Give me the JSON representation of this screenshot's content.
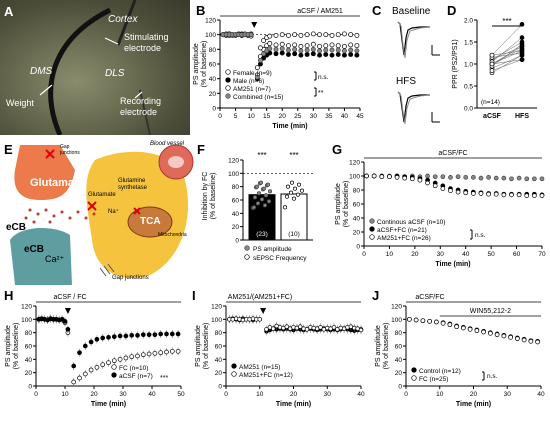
{
  "panelA": {
    "label": "A",
    "cortex": "Cortex",
    "stim": "Stimulating\nelectrode",
    "dms": "DMS",
    "dls": "DLS",
    "weight": "Weight",
    "rec": "Recording\nelectrode"
  },
  "panelB": {
    "label": "B",
    "banner": "aCSF / AM251",
    "ylabel": "PS amplitude\n(% of baseline)",
    "xlabel": "Time (min)",
    "legend": [
      "Female (n=9)",
      "Male (n=6)",
      "AM251 (n=7)",
      "Combined (n=15)"
    ],
    "ns": "n.s.",
    "sig": "**"
  },
  "panelC": {
    "label": "C",
    "baseline": "Baseline",
    "hfs": "HFS"
  },
  "panelD": {
    "label": "D",
    "ylabel": "PPR (PS2/PS1)",
    "n": "(n=14)",
    "sig": "***",
    "cats": [
      "aCSF",
      "HFS"
    ]
  },
  "panelE": {
    "label": "E",
    "glutamate": "Glutamate",
    "ecb1": "eCB",
    "ecb2": "eCB",
    "ca": "Ca²⁺",
    "bloodvessel": "Blood vessel",
    "gluamine": "Glutamine\nsynthetase",
    "glutamate2": "Glutamate",
    "tca": "TCA",
    "mito": "Mitochondria",
    "gapjx": "Gap junctions",
    "gapjx2": "Gap\njunctions",
    "na": "Na⁺"
  },
  "panelF": {
    "label": "F",
    "ylabel": "Inhibition by FC\n(% of baseline)",
    "sig1": "***",
    "sig2": "***",
    "n1": "(23)",
    "n2": "(10)",
    "legend": [
      "PS amplitude",
      "sEPSC Frequency"
    ]
  },
  "panelG": {
    "label": "G",
    "banner": "aCSF/FC",
    "ylabel": "PS amplitude\n(% of baseline)",
    "xlabel": "Time (min)",
    "legend": [
      "Continous aCSF (n=10)",
      "aCSF+FC (n=21)",
      "AM251+FC (n=26)"
    ],
    "ns": "n.s."
  },
  "panelH": {
    "label": "H",
    "banner": "aCSF / FC",
    "ylabel": "PS amplitude\n(% of baseline)",
    "xlabel": "Time (min)",
    "legend": [
      "FC (n=10)",
      "aCSF (n=7)"
    ],
    "sig": "***"
  },
  "panelI": {
    "label": "I",
    "banner": "AM251/(AM251+FC)",
    "ylabel": "PS amplitude\n(% of baseline)",
    "xlabel": "Time (min)",
    "legend": [
      "AM251 (n=15)",
      "AM251+FC (n=12)"
    ]
  },
  "panelJ": {
    "label": "J",
    "banner": "aCSF/FC",
    "banner2": "WIN55,212-2",
    "ylabel": "PS amplitude\n(% of baseline)",
    "xlabel": "Time (min)",
    "legend": [
      "Control (n=12)",
      "FC (n=25)"
    ],
    "ns": "n.s."
  },
  "chart_data": [
    {
      "id": "B",
      "type": "scatter",
      "xlim": [
        0,
        45
      ],
      "ylim": [
        0,
        120
      ],
      "xticks": [
        0,
        5,
        10,
        15,
        20,
        25,
        30,
        35,
        40,
        45
      ],
      "yticks": [
        0,
        20,
        40,
        60,
        80,
        100,
        120
      ],
      "series": [
        {
          "name": "Female (n=9)",
          "style": "open",
          "x": [
            1,
            2,
            3,
            4,
            5,
            6,
            7,
            8,
            9,
            10,
            12,
            13,
            14,
            15,
            16,
            18,
            20,
            22,
            24,
            26,
            28,
            30,
            32,
            34,
            36,
            38,
            40,
            42,
            44
          ],
          "y": [
            100,
            101,
            99,
            100,
            100,
            101,
            99,
            100,
            100,
            98,
            45,
            70,
            80,
            85,
            88,
            86,
            87,
            85,
            86,
            84,
            85,
            87,
            84,
            85,
            86,
            85,
            84,
            86,
            85
          ]
        },
        {
          "name": "Male (n=6)",
          "style": "filled",
          "x": [
            1,
            2,
            3,
            4,
            5,
            6,
            7,
            8,
            9,
            10,
            12,
            13,
            14,
            15,
            16,
            18,
            20,
            22,
            24,
            26,
            28,
            30,
            32,
            34,
            36,
            38,
            40,
            42,
            44
          ],
          "y": [
            100,
            99,
            101,
            100,
            99,
            100,
            101,
            100,
            99,
            101,
            40,
            60,
            68,
            72,
            75,
            74,
            75,
            73,
            74,
            72,
            73,
            74,
            72,
            73,
            72,
            73,
            72,
            73,
            72
          ]
        },
        {
          "name": "AM251 (n=7)",
          "style": "open",
          "x": [
            1,
            2,
            3,
            4,
            5,
            6,
            7,
            8,
            9,
            10,
            12,
            13,
            14,
            15,
            16,
            18,
            20,
            22,
            24,
            26,
            28,
            30,
            32,
            34,
            36,
            38,
            40,
            42,
            44
          ],
          "y": [
            100,
            100,
            101,
            99,
            100,
            100,
            99,
            101,
            100,
            100,
            55,
            82,
            92,
            96,
            98,
            99,
            100,
            99,
            100,
            99,
            100,
            101,
            100,
            100,
            99,
            100,
            101,
            100,
            99
          ]
        },
        {
          "name": "Combined (n=15)",
          "style": "gray",
          "x": [
            1,
            2,
            3,
            4,
            5,
            6,
            7,
            8,
            9,
            10,
            12,
            13,
            14,
            15,
            16,
            18,
            20,
            22,
            24,
            26,
            28,
            30,
            32,
            34,
            36,
            38,
            40,
            42,
            44
          ],
          "y": [
            100,
            100,
            100,
            100,
            100,
            100,
            100,
            100,
            100,
            100,
            42,
            65,
            74,
            78,
            81,
            80,
            81,
            79,
            80,
            78,
            79,
            80,
            78,
            79,
            79,
            79,
            78,
            79,
            78
          ]
        }
      ]
    },
    {
      "id": "D",
      "type": "scatter",
      "categories": [
        "aCSF",
        "HFS"
      ],
      "ylim": [
        0.0,
        2.0
      ],
      "yticks": [
        0.0,
        0.5,
        1.0,
        1.5,
        2.0
      ],
      "pairs": [
        [
          1.0,
          1.3
        ],
        [
          1.1,
          1.4
        ],
        [
          0.9,
          1.2
        ],
        [
          1.2,
          1.9
        ],
        [
          1.0,
          1.1
        ],
        [
          1.1,
          1.5
        ],
        [
          0.8,
          1.2
        ],
        [
          1.0,
          1.35
        ],
        [
          1.15,
          1.25
        ],
        [
          0.95,
          1.45
        ],
        [
          1.05,
          1.6
        ],
        [
          1.2,
          1.3
        ],
        [
          0.85,
          1.1
        ],
        [
          1.0,
          1.4
        ]
      ]
    },
    {
      "id": "F",
      "type": "bar",
      "categories": [
        "PS amplitude",
        "sEPSC Frequency"
      ],
      "values": [
        68,
        69
      ],
      "ylim": [
        0,
        120
      ],
      "yticks": [
        0,
        20,
        40,
        60,
        80,
        100,
        120
      ]
    },
    {
      "id": "G",
      "type": "scatter",
      "xlim": [
        0,
        70
      ],
      "ylim": [
        0,
        120
      ],
      "xticks": [
        0,
        10,
        20,
        30,
        40,
        50,
        60,
        70
      ],
      "yticks": [
        0,
        20,
        40,
        60,
        80,
        100,
        120
      ],
      "series": [
        {
          "name": "Continous aCSF (n=10)",
          "style": "gray",
          "x": [
            1,
            4,
            7,
            10,
            13,
            16,
            19,
            22,
            25,
            28,
            31,
            34,
            37,
            40,
            43,
            46,
            49,
            52,
            55,
            58,
            61,
            64,
            67,
            70
          ],
          "y": [
            100,
            100,
            99,
            100,
            100,
            99,
            100,
            99,
            100,
            99,
            99,
            98,
            99,
            98,
            98,
            97,
            98,
            97,
            97,
            96,
            97,
            96,
            96,
            96
          ]
        },
        {
          "name": "aCSF+FC (n=21)",
          "style": "filled",
          "x": [
            1,
            4,
            7,
            10,
            13,
            16,
            19,
            22,
            25,
            28,
            31,
            34,
            37,
            40,
            43,
            46,
            49,
            52,
            55,
            58,
            61,
            64,
            67,
            70
          ],
          "y": [
            100,
            100,
            100,
            99,
            100,
            99,
            98,
            96,
            94,
            90,
            86,
            82,
            80,
            78,
            77,
            76,
            75,
            75,
            74,
            74,
            74,
            74,
            74,
            73
          ]
        },
        {
          "name": "AM251+FC (n=26)",
          "style": "open",
          "x": [
            1,
            4,
            7,
            10,
            13,
            16,
            19,
            22,
            25,
            28,
            31,
            34,
            37,
            40,
            43,
            46,
            49,
            52,
            55,
            58,
            61,
            64,
            67,
            70
          ],
          "y": [
            100,
            100,
            99,
            99,
            98,
            97,
            96,
            94,
            90,
            86,
            82,
            79,
            77,
            76,
            75,
            75,
            74,
            74,
            73,
            73,
            73,
            72,
            72,
            72
          ]
        }
      ]
    },
    {
      "id": "H",
      "type": "scatter",
      "xlim": [
        0,
        50
      ],
      "ylim": [
        0,
        120
      ],
      "xticks": [
        0,
        10,
        20,
        30,
        40,
        50
      ],
      "yticks": [
        0,
        20,
        40,
        60,
        80,
        100,
        120
      ],
      "series": [
        {
          "name": "FC (n=10)",
          "style": "open",
          "x": [
            1,
            2,
            3,
            4,
            5,
            6,
            7,
            8,
            9,
            10,
            11,
            13,
            15,
            17,
            19,
            21,
            23,
            25,
            27,
            29,
            31,
            33,
            35,
            37,
            39,
            41,
            43,
            45,
            47,
            49
          ],
          "y": [
            100,
            101,
            100,
            99,
            101,
            100,
            100,
            99,
            100,
            95,
            80,
            6,
            12,
            18,
            24,
            28,
            32,
            35,
            38,
            40,
            42,
            44,
            45,
            47,
            48,
            49,
            50,
            51,
            52,
            52
          ]
        },
        {
          "name": "aCSF (n=7)",
          "style": "filled",
          "x": [
            1,
            2,
            3,
            4,
            5,
            6,
            7,
            8,
            9,
            10,
            11,
            13,
            15,
            17,
            19,
            21,
            23,
            25,
            27,
            29,
            31,
            33,
            35,
            37,
            39,
            41,
            43,
            45,
            47,
            49
          ],
          "y": [
            100,
            101,
            100,
            99,
            101,
            100,
            100,
            99,
            100,
            97,
            85,
            30,
            50,
            60,
            66,
            70,
            72,
            73,
            74,
            75,
            75,
            76,
            76,
            77,
            77,
            77,
            78,
            78,
            78,
            78
          ]
        }
      ]
    },
    {
      "id": "I",
      "type": "scatter",
      "xlim": [
        0,
        40
      ],
      "ylim": [
        0,
        120
      ],
      "xticks": [
        0,
        10,
        20,
        30,
        40
      ],
      "yticks": [
        0,
        20,
        40,
        60,
        80,
        100,
        120
      ],
      "series": [
        {
          "name": "AM251 (n=15)",
          "style": "filled",
          "x": [
            1,
            2,
            3,
            4,
            5,
            6,
            7,
            8,
            9,
            10,
            12,
            13,
            14,
            15,
            16,
            17,
            18,
            19,
            20,
            21,
            22,
            23,
            24,
            25,
            26,
            27,
            28,
            29,
            30,
            31,
            32,
            33,
            34,
            35,
            36,
            37,
            38,
            39,
            40
          ],
          "y": [
            100,
            101,
            100,
            99,
            101,
            100,
            100,
            99,
            100,
            100,
            82,
            84,
            86,
            85,
            86,
            85,
            86,
            85,
            84,
            86,
            85,
            84,
            85,
            86,
            85,
            84,
            85,
            86,
            85,
            84,
            85,
            84,
            85,
            86,
            85,
            84,
            83,
            84,
            85
          ]
        },
        {
          "name": "AM251+FC (n=12)",
          "style": "open",
          "x": [
            1,
            2,
            3,
            4,
            5,
            6,
            7,
            8,
            9,
            10,
            12,
            13,
            14,
            15,
            16,
            17,
            18,
            19,
            20,
            21,
            22,
            23,
            24,
            25,
            26,
            27,
            28,
            29,
            30,
            31,
            32,
            33,
            34,
            35,
            36,
            37,
            38,
            39,
            40
          ],
          "y": [
            100,
            100,
            101,
            100,
            99,
            100,
            100,
            101,
            100,
            100,
            85,
            88,
            86,
            90,
            88,
            87,
            89,
            86,
            88,
            87,
            89,
            86,
            85,
            88,
            87,
            86,
            88,
            85,
            87,
            86,
            88,
            85,
            87,
            86,
            88,
            89,
            87,
            86,
            84
          ]
        }
      ]
    },
    {
      "id": "J",
      "type": "scatter",
      "xlim": [
        0,
        40
      ],
      "ylim": [
        0,
        120
      ],
      "xticks": [
        0,
        10,
        20,
        30,
        40
      ],
      "yticks": [
        0,
        20,
        40,
        60,
        80,
        100,
        120
      ],
      "series": [
        {
          "name": "Control (n=12)",
          "style": "filled",
          "x": [
            1,
            3,
            5,
            7,
            9,
            11,
            13,
            15,
            17,
            19,
            21,
            23,
            25,
            27,
            29,
            31,
            33,
            35,
            37,
            39
          ],
          "y": [
            100,
            99,
            98,
            97,
            96,
            95,
            93,
            90,
            88,
            86,
            84,
            82,
            80,
            78,
            76,
            74,
            72,
            70,
            68,
            67
          ]
        },
        {
          "name": "FC (n=25)",
          "style": "open",
          "x": [
            1,
            3,
            5,
            7,
            9,
            11,
            13,
            15,
            17,
            19,
            21,
            23,
            25,
            27,
            29,
            31,
            33,
            35,
            37,
            39
          ],
          "y": [
            100,
            99,
            98,
            97,
            96,
            94,
            92,
            89,
            87,
            85,
            83,
            81,
            79,
            77,
            75,
            73,
            71,
            69,
            67,
            66
          ]
        }
      ]
    }
  ]
}
